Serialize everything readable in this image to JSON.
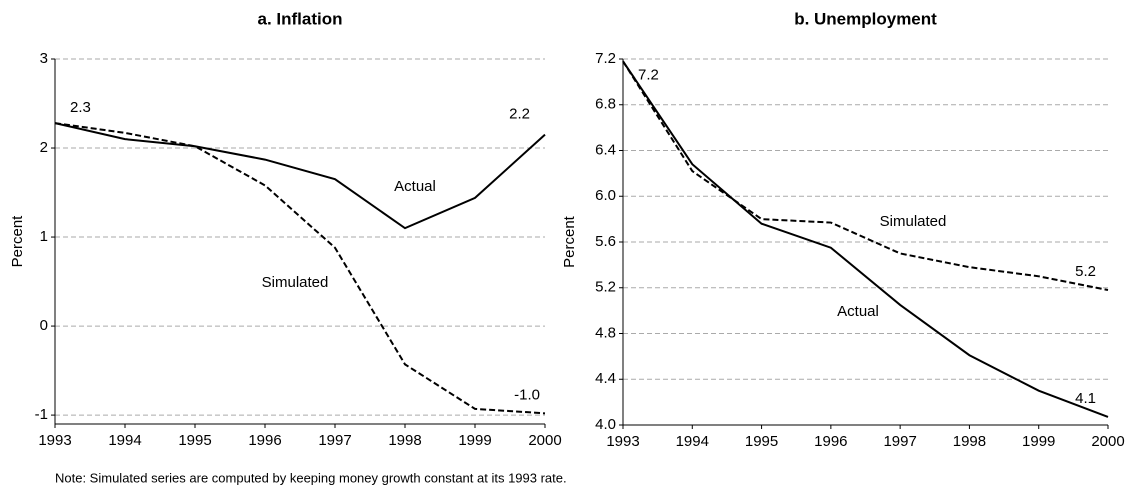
{
  "chart_data": [
    {
      "type": "line",
      "title": "a.  Inflation",
      "ylabel": "Percent",
      "x": [
        1993,
        1994,
        1995,
        1996,
        1997,
        1998,
        1999,
        2000
      ],
      "xlim": [
        1993,
        2000
      ],
      "xticks": [
        1993,
        1994,
        1995,
        1996,
        1997,
        1998,
        1999,
        2000
      ],
      "ylim": [
        -1.1,
        3
      ],
      "yticks": [
        -1,
        0,
        1,
        2,
        3
      ],
      "grid": true,
      "series": [
        {
          "name": "Actual",
          "color": "#000000",
          "style": "solid",
          "values": [
            2.28,
            2.1,
            2.02,
            1.87,
            1.65,
            1.1,
            1.44,
            2.15
          ],
          "value_labels": [
            "2.3",
            null,
            null,
            null,
            null,
            null,
            null,
            "2.2"
          ]
        },
        {
          "name": "Simulated",
          "color": "#000000",
          "style": "dashed",
          "values": [
            2.28,
            2.17,
            2.02,
            1.58,
            0.88,
            -0.43,
            -0.93,
            -0.98
          ],
          "value_labels": [
            null,
            null,
            null,
            null,
            null,
            null,
            null,
            "-1.0"
          ]
        }
      ]
    },
    {
      "type": "line",
      "title": "b.  Unemployment",
      "ylabel": "Percent",
      "x": [
        1993,
        1994,
        1995,
        1996,
        1997,
        1998,
        1999,
        2000
      ],
      "xlim": [
        1993,
        2000
      ],
      "xticks": [
        1993,
        1994,
        1995,
        1996,
        1997,
        1998,
        1999,
        2000
      ],
      "ylim": [
        4.0,
        7.2
      ],
      "yticks": [
        {
          "value": 4.0,
          "label": "4.0"
        },
        4.4,
        4.8,
        5.2,
        5.6,
        {
          "value": 6.0,
          "label": "6.0"
        },
        6.4,
        6.8,
        7.2
      ],
      "grid": true,
      "series": [
        {
          "name": "Actual",
          "color": "#000000",
          "style": "solid",
          "values": [
            7.18,
            6.28,
            5.76,
            5.55,
            5.05,
            4.61,
            4.3,
            4.07
          ],
          "value_labels": [
            "7.2",
            null,
            null,
            null,
            null,
            null,
            null,
            "4.1"
          ]
        },
        {
          "name": "Simulated",
          "color": "#000000",
          "style": "dashed",
          "values": [
            7.18,
            6.22,
            5.8,
            5.77,
            5.5,
            5.38,
            5.3,
            5.18
          ],
          "value_labels": [
            null,
            null,
            null,
            null,
            null,
            null,
            null,
            "5.2"
          ]
        }
      ]
    }
  ],
  "note": "Note: Simulated series are computed by keeping money growth constant at its 1993 rate."
}
